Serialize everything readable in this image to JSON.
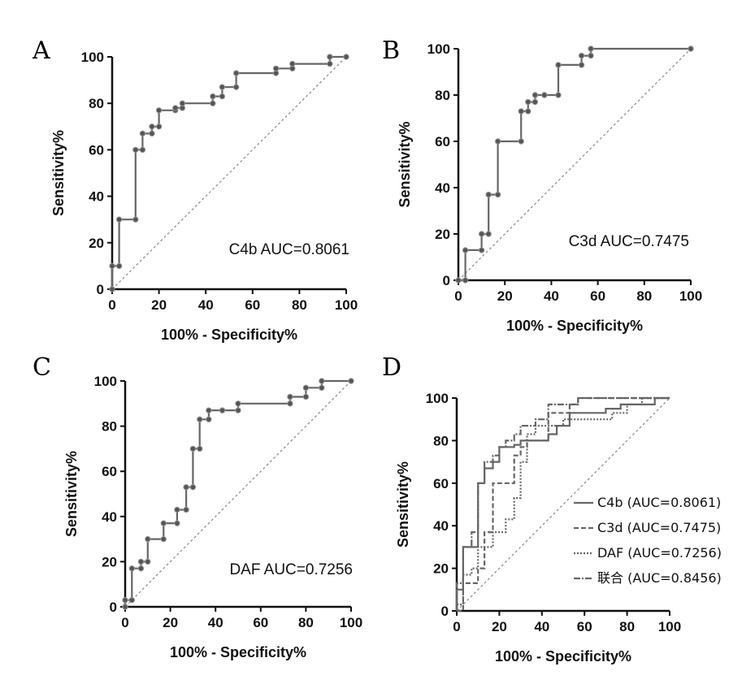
{
  "colors": {
    "axis": "#111111",
    "curve": "#666666",
    "reference_line": "#888888",
    "background": "#ffffff"
  },
  "chart_data": [
    {
      "id": "A",
      "type": "line",
      "panel_label": "A",
      "xlabel": "100% - Specificity%",
      "ylabel": "Sensitivity%",
      "xlim": [
        0,
        100
      ],
      "ylim": [
        0,
        100
      ],
      "xticks": [
        0,
        20,
        40,
        60,
        80,
        100
      ],
      "yticks": [
        0,
        20,
        40,
        60,
        80,
        100
      ],
      "annotation": "C4b AUC=0.8061",
      "markers": true,
      "reference_diagonal": true,
      "series": [
        {
          "x": [
            0,
            0,
            3,
            3,
            10,
            10,
            13,
            13,
            17,
            17,
            20,
            20,
            27,
            27,
            30,
            30,
            43,
            43,
            47,
            47,
            53,
            53,
            70,
            70,
            77,
            77,
            93,
            93,
            100
          ],
          "y": [
            0,
            10,
            10,
            30,
            30,
            60,
            60,
            67,
            67,
            70,
            70,
            77,
            77,
            78,
            78,
            80,
            80,
            83,
            83,
            87,
            87,
            93,
            93,
            95,
            95,
            97,
            97,
            100,
            100
          ]
        }
      ]
    },
    {
      "id": "B",
      "type": "line",
      "panel_label": "B",
      "xlabel": "100% - Specificity%",
      "ylabel": "Sensitivity%",
      "xlim": [
        0,
        100
      ],
      "ylim": [
        0,
        100
      ],
      "xticks": [
        0,
        20,
        40,
        60,
        80,
        100
      ],
      "yticks": [
        0,
        20,
        40,
        60,
        80,
        100
      ],
      "annotation": "C3d AUC=0.7475",
      "markers": true,
      "reference_diagonal": true,
      "series": [
        {
          "x": [
            0,
            3,
            3,
            10,
            10,
            13,
            13,
            17,
            17,
            27,
            27,
            30,
            30,
            33,
            33,
            37,
            37,
            43,
            43,
            53,
            53,
            57,
            57,
            100
          ],
          "y": [
            0,
            0,
            13,
            13,
            20,
            20,
            37,
            37,
            60,
            60,
            73,
            73,
            77,
            77,
            80,
            80,
            80,
            80,
            93,
            93,
            97,
            97,
            100,
            100
          ]
        }
      ]
    },
    {
      "id": "C",
      "type": "line",
      "panel_label": "C",
      "xlabel": "100% - Specificity%",
      "ylabel": "Sensitivity%",
      "xlim": [
        0,
        100
      ],
      "ylim": [
        0,
        100
      ],
      "xticks": [
        0,
        20,
        40,
        60,
        80,
        100
      ],
      "yticks": [
        0,
        20,
        40,
        60,
        80,
        100
      ],
      "annotation": "DAF AUC=0.7256",
      "markers": true,
      "reference_diagonal": true,
      "series": [
        {
          "x": [
            0,
            0,
            3,
            3,
            7,
            7,
            10,
            10,
            17,
            17,
            23,
            23,
            27,
            27,
            30,
            30,
            33,
            33,
            37,
            37,
            43,
            43,
            50,
            50,
            73,
            73,
            80,
            80,
            87,
            87,
            100
          ],
          "y": [
            0,
            3,
            3,
            17,
            17,
            20,
            20,
            30,
            30,
            37,
            37,
            43,
            43,
            53,
            53,
            70,
            70,
            83,
            83,
            87,
            87,
            87,
            87,
            90,
            90,
            93,
            93,
            97,
            97,
            100,
            100
          ]
        }
      ]
    },
    {
      "id": "D",
      "type": "line",
      "panel_label": "D",
      "xlabel": "100% - Specificity%",
      "ylabel": "Sensitivity%",
      "xlim": [
        0,
        100
      ],
      "ylim": [
        0,
        100
      ],
      "xticks": [
        0,
        20,
        40,
        60,
        80,
        100
      ],
      "yticks": [
        0,
        20,
        40,
        60,
        80,
        100
      ],
      "markers": false,
      "reference_diagonal": true,
      "legend_position": "right",
      "series": [
        {
          "name": "C4b (AUC=0.8061)",
          "x": [
            0,
            0,
            3,
            3,
            10,
            10,
            13,
            13,
            17,
            17,
            20,
            20,
            27,
            27,
            30,
            30,
            43,
            43,
            47,
            47,
            53,
            53,
            70,
            70,
            77,
            77,
            93,
            93,
            100
          ],
          "y": [
            0,
            10,
            10,
            30,
            30,
            60,
            60,
            67,
            67,
            70,
            70,
            77,
            77,
            78,
            78,
            80,
            80,
            83,
            83,
            87,
            87,
            93,
            93,
            95,
            95,
            97,
            97,
            100,
            100
          ]
        },
        {
          "name": "C3d (AUC=0.7475)",
          "x": [
            0,
            3,
            3,
            10,
            10,
            13,
            13,
            17,
            17,
            27,
            27,
            30,
            30,
            33,
            33,
            37,
            37,
            43,
            43,
            53,
            53,
            57,
            57,
            100
          ],
          "y": [
            0,
            0,
            13,
            13,
            20,
            20,
            37,
            37,
            60,
            60,
            73,
            73,
            77,
            77,
            80,
            80,
            80,
            80,
            93,
            93,
            97,
            97,
            100,
            100
          ]
        },
        {
          "name": "DAF (AUC=0.7256)",
          "x": [
            0,
            0,
            3,
            3,
            7,
            7,
            10,
            10,
            17,
            17,
            23,
            23,
            27,
            27,
            30,
            30,
            33,
            33,
            37,
            37,
            43,
            43,
            50,
            50,
            73,
            73,
            80,
            80,
            87,
            87,
            100
          ],
          "y": [
            0,
            3,
            3,
            17,
            17,
            20,
            20,
            30,
            30,
            37,
            37,
            43,
            43,
            53,
            53,
            70,
            70,
            83,
            83,
            87,
            87,
            87,
            87,
            90,
            90,
            93,
            93,
            97,
            97,
            100,
            100
          ]
        },
        {
          "name": "联合 (AUC=0.8456)",
          "x": [
            0,
            0,
            3,
            3,
            7,
            7,
            10,
            10,
            13,
            13,
            17,
            17,
            20,
            20,
            23,
            23,
            27,
            27,
            30,
            30,
            37,
            37,
            43,
            43,
            47,
            47,
            57,
            57,
            100
          ],
          "y": [
            0,
            13,
            13,
            30,
            30,
            37,
            37,
            60,
            60,
            70,
            70,
            73,
            73,
            77,
            77,
            80,
            80,
            83,
            83,
            87,
            87,
            90,
            90,
            97,
            97,
            97,
            97,
            100,
            100
          ]
        }
      ]
    }
  ]
}
